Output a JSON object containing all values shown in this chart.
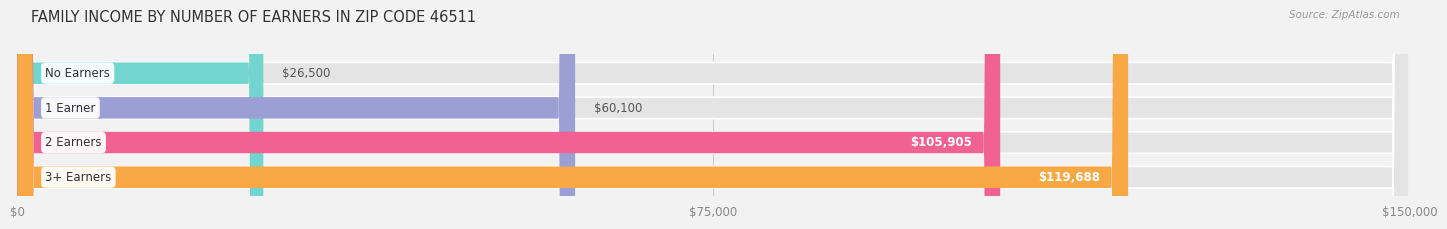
{
  "title": "FAMILY INCOME BY NUMBER OF EARNERS IN ZIP CODE 46511",
  "source": "Source: ZipAtlas.com",
  "categories": [
    "No Earners",
    "1 Earner",
    "2 Earners",
    "3+ Earners"
  ],
  "values": [
    26500,
    60100,
    105905,
    119688
  ],
  "labels": [
    "$26,500",
    "$60,100",
    "$105,905",
    "$119,688"
  ],
  "bar_colors": [
    "#72d5cf",
    "#9b9fd4",
    "#f06292",
    "#f9a846"
  ],
  "label_colors": [
    "#555555",
    "#555555",
    "#ffffff",
    "#ffffff"
  ],
  "label_inside": [
    false,
    false,
    true,
    true
  ],
  "xlim": [
    0,
    150000
  ],
  "xticks": [
    0,
    75000,
    150000
  ],
  "xticklabels": [
    "$0",
    "$75,000",
    "$150,000"
  ],
  "bg_color": "#f2f2f2",
  "bar_bg_color": "#e4e4e4",
  "title_fontsize": 10.5,
  "bar_height": 0.62,
  "figsize": [
    14.06,
    2.33
  ],
  "dpi": 100
}
